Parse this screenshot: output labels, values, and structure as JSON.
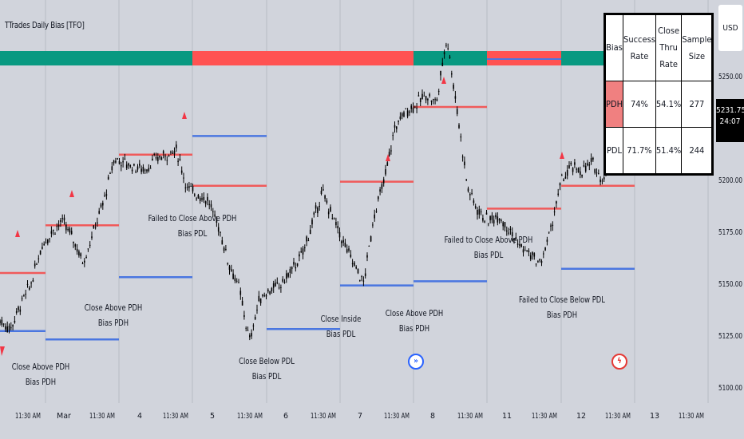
{
  "indicator_title": "TTrades Daily Bias [TFO]",
  "currency_label": "USD",
  "last_price": "5231.75",
  "countdown": "24:07",
  "stats_table": {
    "headers": [
      "Bias",
      "Success Rate",
      "Close Thru Rate",
      "Sample Size"
    ],
    "rows": [
      {
        "bias": "PDH",
        "success_rate": "74%",
        "close_thru_rate": "54.1%",
        "sample_size": "277"
      },
      {
        "bias": "PDL",
        "success_rate": "71.7%",
        "close_thru_rate": "51.4%",
        "sample_size": "244"
      }
    ]
  },
  "annotations": [
    {
      "line1": "Close Above PDH",
      "line2": "Bias PDH"
    },
    {
      "line1": "Close Above PDH",
      "line2": "Bias PDH"
    },
    {
      "line1": "Failed to Close Above PDH",
      "line2": "Bias PDL"
    },
    {
      "line1": "Close Below PDL",
      "line2": "Bias PDL"
    },
    {
      "line1": "Close Inside",
      "line2": "Bias PDL"
    },
    {
      "line1": "Close Above PDH",
      "line2": "Bias PDH"
    },
    {
      "line1": "Failed to Close Above PDH",
      "line2": "Bias PDL"
    },
    {
      "line1": "Failed to Close Below PDL",
      "line2": "Bias PDH"
    }
  ],
  "chart_data": {
    "type": "line",
    "title": "TTrades Daily Bias [TFO]",
    "y_ticks": [
      "5250.00",
      "5225.00",
      "5200.00",
      "5175.00",
      "5150.00",
      "5125.00",
      "5100.00"
    ],
    "ylim": [
      5093,
      5280
    ],
    "x_ticks": [
      "11:30 AM",
      "Mar",
      "11:30 AM",
      "4",
      "11:30 AM",
      "5",
      "11:30 AM",
      "6",
      "11:30 AM",
      "7",
      "11:30 AM",
      "8",
      "11:30 AM",
      "11",
      "11:30 AM",
      "12",
      "11:30 AM",
      "13",
      "11:30 AM"
    ],
    "colors": {
      "bias_bull": "#089981",
      "bias_bear": "#ff5252",
      "pdh": "#f05a5a",
      "pdl": "#4a76e0",
      "candles": "#000000"
    },
    "bias_strip": [
      "bull",
      "bear",
      "bull",
      "bear",
      "bull"
    ],
    "pdh_levels": [
      {
        "x": [
          0,
          1
        ],
        "y": 5155
      },
      {
        "x": [
          1,
          2
        ],
        "y": 5178
      },
      {
        "x": [
          2,
          3
        ],
        "y": 5212
      },
      {
        "x": [
          3,
          4
        ],
        "y": 5197
      },
      {
        "x": [
          5,
          6
        ],
        "y": 5199
      },
      {
        "x": [
          6,
          7
        ],
        "y": 5235
      },
      {
        "x": [
          7,
          8
        ],
        "y": 5186
      },
      {
        "x": [
          8,
          9
        ],
        "y": 5197
      }
    ],
    "pdl_levels": [
      {
        "x": [
          0,
          1
        ],
        "y": 5127
      },
      {
        "x": [
          1,
          2
        ],
        "y": 5123
      },
      {
        "x": [
          2,
          3
        ],
        "y": 5153
      },
      {
        "x": [
          3,
          4
        ],
        "y": 5221
      },
      {
        "x": [
          4,
          5
        ],
        "y": 5128
      },
      {
        "x": [
          5,
          6
        ],
        "y": 5149
      },
      {
        "x": [
          6,
          7
        ],
        "y": 5151
      },
      {
        "x": [
          8,
          9
        ],
        "y": 5157
      }
    ],
    "price_path": [
      5132,
      5128,
      5140,
      5150,
      5168,
      5175,
      5180,
      5172,
      5160,
      5175,
      5190,
      5210,
      5208,
      5206,
      5205,
      5210,
      5212,
      5214,
      5196,
      5193,
      5190,
      5178,
      5160,
      5148,
      5122,
      5143,
      5147,
      5149,
      5156,
      5163,
      5178,
      5194,
      5182,
      5170,
      5160,
      5150,
      5183,
      5200,
      5225,
      5233,
      5236,
      5241,
      5237,
      5269,
      5233,
      5196,
      5185,
      5180,
      5183,
      5176,
      5168,
      5164,
      5159,
      5176,
      5199,
      5206,
      5204,
      5208,
      5200,
      5210
    ]
  }
}
